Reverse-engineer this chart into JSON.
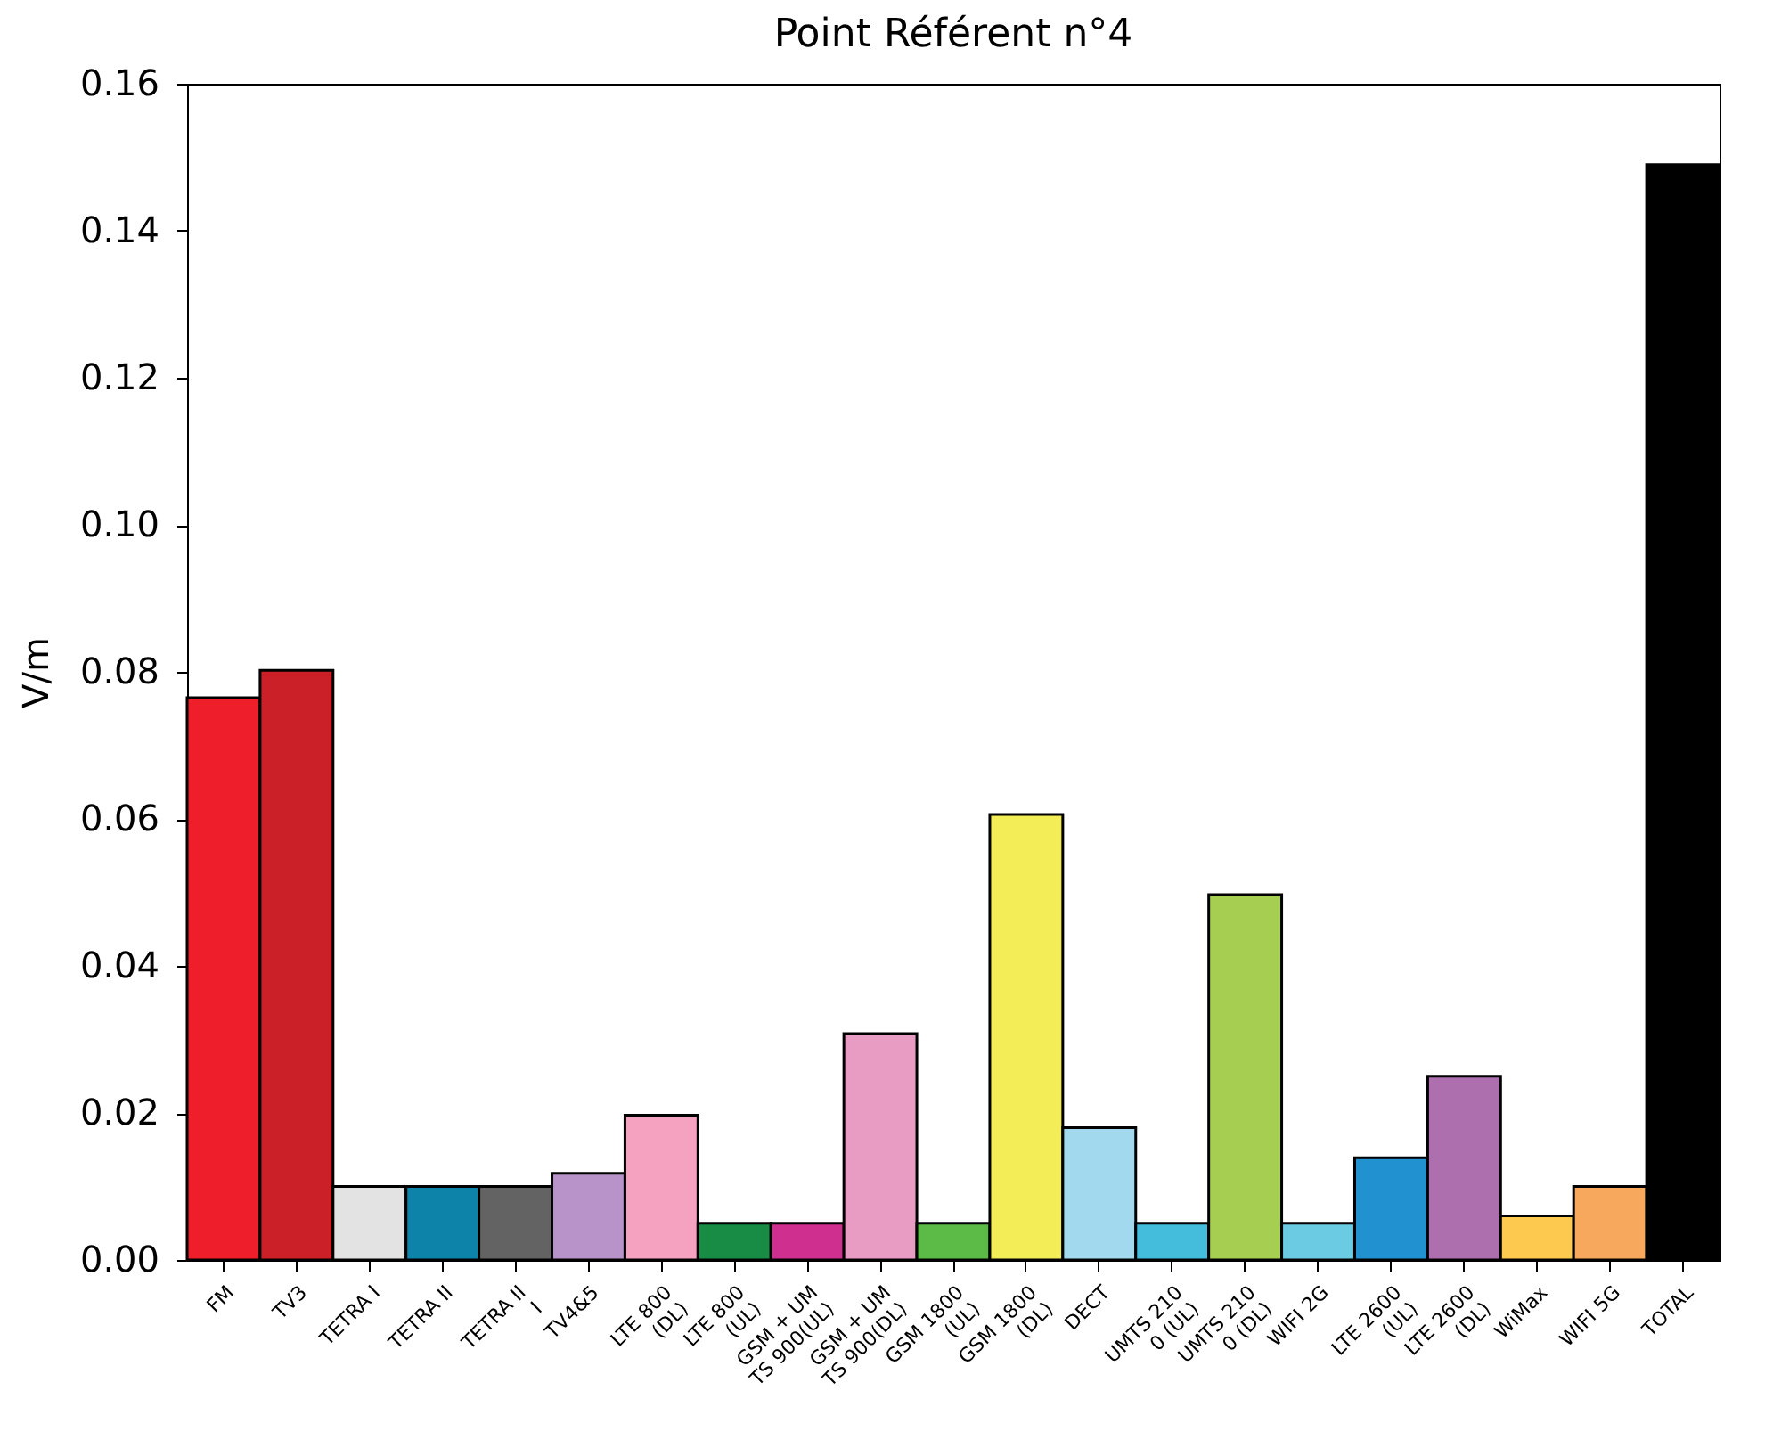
{
  "chart_data": {
    "type": "bar",
    "title": "Point Référent n°4",
    "ylabel": "V/m",
    "categories": [
      "FM",
      "TV3",
      "TETRA I",
      "TETRA II",
      "TETRA II\nI",
      "TV4&5",
      "LTE 800\n(DL)",
      "LTE 800\n(UL)",
      "GSM + UM\nTS 900(UL)",
      "GSM + UM\nTS 900(DL)",
      "GSM 1800\n(UL)",
      "GSM 1800\n(DL)",
      "DECT",
      "UMTS 210\n0 (UL)",
      "UMTS 210\n0 (DL)",
      "WIFI 2G",
      "LTE 2600\n(UL)",
      "LTE 2600\n(DL)",
      "WiMax",
      "WIFI 5G",
      "TOTAL"
    ],
    "values": [
      0.0765,
      0.0802,
      0.01,
      0.01,
      0.01,
      0.0118,
      0.0197,
      0.005,
      0.005,
      0.0308,
      0.005,
      0.0606,
      0.018,
      0.005,
      0.0497,
      0.005,
      0.0139,
      0.025,
      0.006,
      0.01,
      0.149
    ],
    "colors": [
      "#ee1f2b",
      "#cc2029",
      "#e3e3e3",
      "#0e83aa",
      "#636363",
      "#b893c9",
      "#f5a2c0",
      "#188c44",
      "#cf2f8e",
      "#e99cc3",
      "#5cbb47",
      "#f3ed57",
      "#a2d9ee",
      "#44bcdc",
      "#a6ce51",
      "#6bcbe3",
      "#2191d0",
      "#ad6fae",
      "#fdc94f",
      "#f8a85c",
      "#000000"
    ],
    "ylim": [
      0,
      0.16
    ],
    "yticks": [
      {
        "value": 0,
        "label": "0.00"
      },
      {
        "value": 0.02,
        "label": "0.02"
      },
      {
        "value": 0.04,
        "label": "0.04"
      },
      {
        "value": 0.06,
        "label": "0.06"
      },
      {
        "value": 0.08,
        "label": "0.08"
      },
      {
        "value": 0.1,
        "label": "0.10"
      },
      {
        "value": 0.12,
        "label": "0.12"
      },
      {
        "value": 0.14,
        "label": "0.14"
      },
      {
        "value": 0.16,
        "label": "0.16"
      }
    ],
    "grid": false,
    "legend": false
  }
}
